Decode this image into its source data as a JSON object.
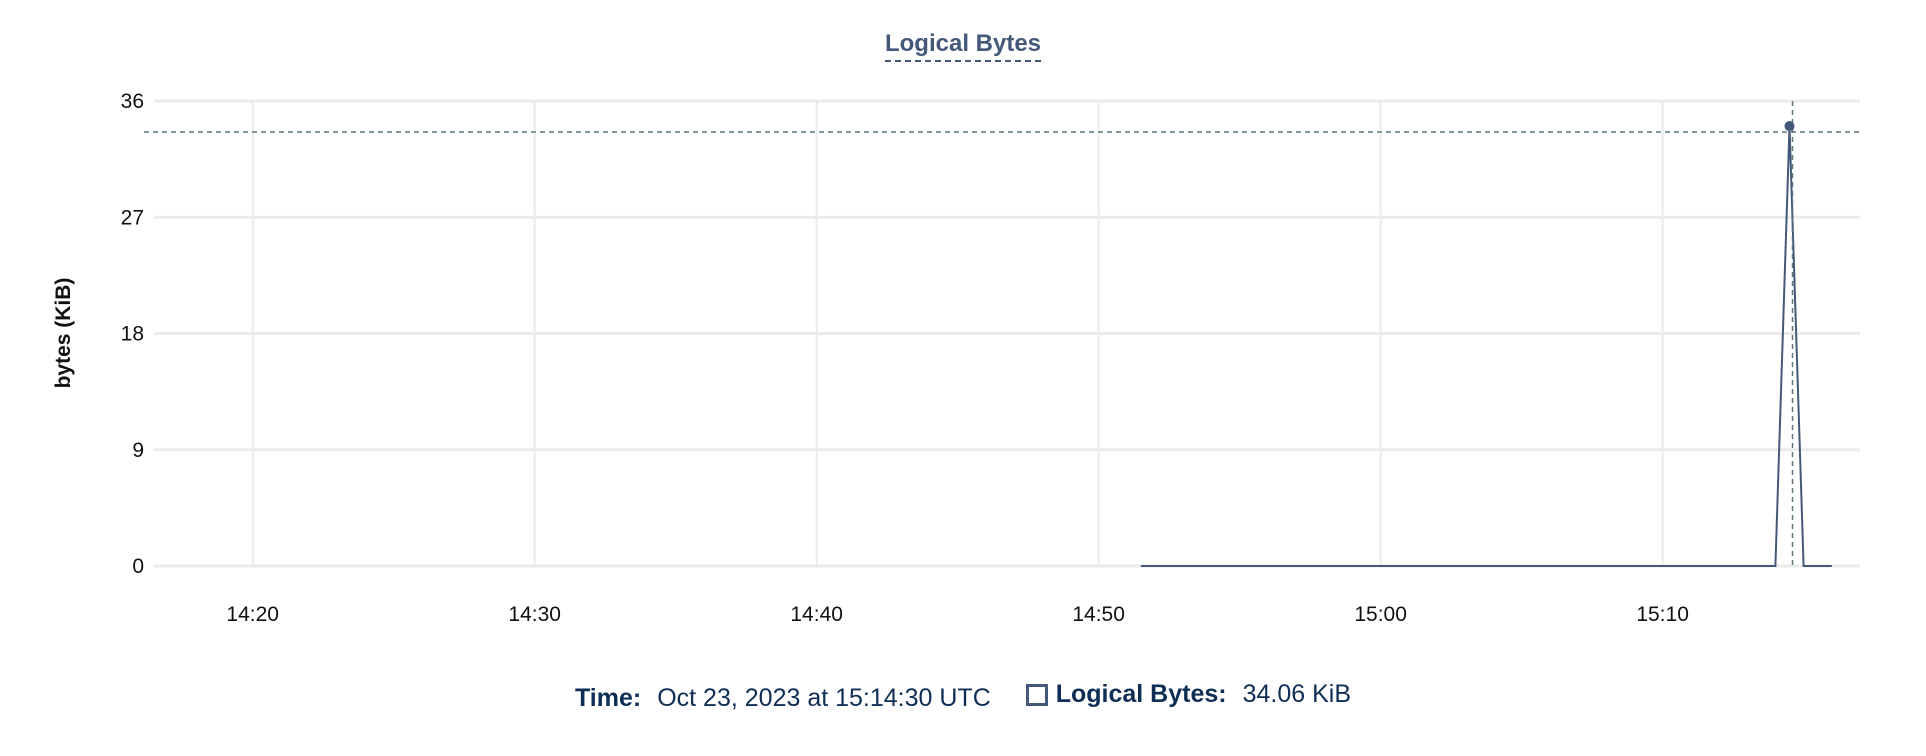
{
  "chart_data": {
    "type": "line",
    "title": "Logical Bytes",
    "ylabel": "bytes (KiB)",
    "xlabel": "",
    "ylim": [
      0,
      36
    ],
    "yticks": [
      "0",
      "9",
      "18",
      "27",
      "36"
    ],
    "xlim": [
      "14:16:30",
      "15:17:00"
    ],
    "xticks": [
      "14:20",
      "14:30",
      "14:40",
      "14:50",
      "15:00",
      "15:10"
    ],
    "grid": true,
    "color": "#44587a",
    "series": [
      {
        "name": "Logical Bytes",
        "x": [
          "14:51:30",
          "15:14:00",
          "15:14:30",
          "15:15:00",
          "15:16:00"
        ],
        "values": [
          0,
          0,
          34.06,
          0,
          0
        ]
      }
    ],
    "crosshair": {
      "x": "15:14:30",
      "y": 34.06
    }
  },
  "legend": {
    "time_label": "Time:",
    "time_value": "Oct 23, 2023 at 15:14:30 UTC",
    "series_label": "Logical Bytes:",
    "series_value": "34.06 KiB"
  }
}
